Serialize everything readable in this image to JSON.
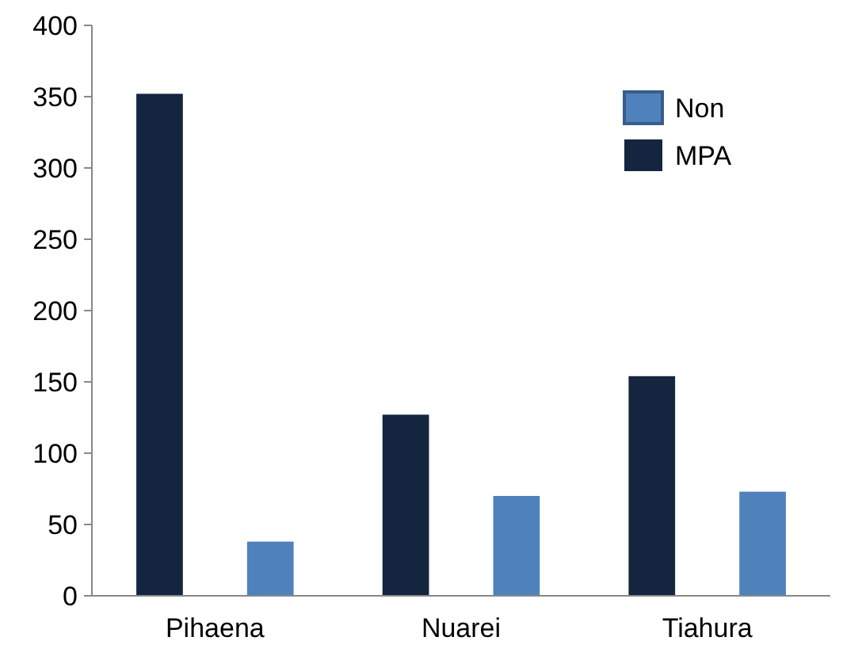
{
  "chart_data": {
    "type": "bar",
    "categories": [
      "Pihaena",
      "Nuarei",
      "Tiahura"
    ],
    "series": [
      {
        "name": "MPA",
        "color": "#14253f",
        "values": [
          352,
          127,
          154
        ]
      },
      {
        "name": "Non",
        "color": "#4f81bd",
        "values": [
          38,
          70,
          73
        ]
      }
    ],
    "ylim": [
      0,
      400
    ],
    "yticks": [
      0,
      50,
      100,
      150,
      200,
      250,
      300,
      350,
      400
    ],
    "grid": false,
    "legend": "top right"
  }
}
